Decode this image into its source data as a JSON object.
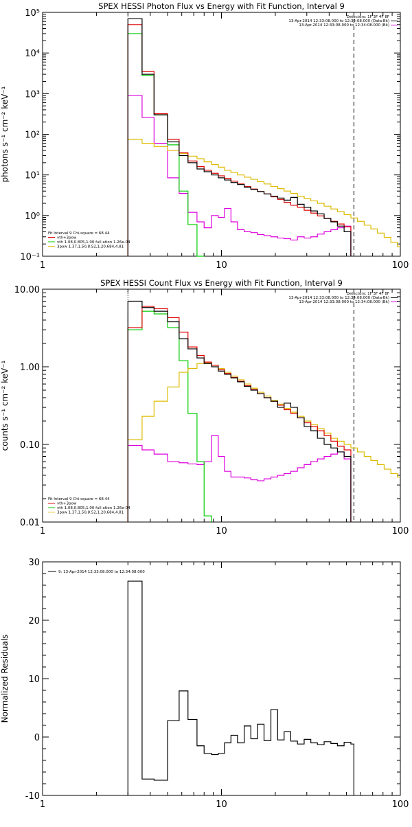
{
  "colors": {
    "observed": "#000000",
    "total_fit": "#dd0000",
    "vth": "#00cc00",
    "powerlaw": "#ddbb00",
    "background": "#dd00dd"
  },
  "chart_data": [
    {
      "type": "line",
      "title": "SPEX HESSI Photon Flux vs Energy with Fit Function, Interval 9",
      "ylabel": "photons s⁻¹ cm⁻² keV⁻¹",
      "xscale": "log",
      "yscale": "log",
      "xlim": [
        1,
        100
      ],
      "ylim": [
        0.1,
        100000
      ],
      "xticks": [
        1,
        10,
        100
      ],
      "xtick_labels": [
        "1",
        "10",
        "100"
      ],
      "yticks": [
        0.1,
        1,
        10,
        100,
        1000,
        10000,
        100000
      ],
      "ytick_labels": [
        "10⁻¹",
        "10⁰",
        "10¹",
        "10²",
        "10³",
        "10⁴",
        "10⁵"
      ],
      "vlines": [
        {
          "x": 3.0,
          "style": "dotted"
        },
        {
          "x": 55.0,
          "style": "dashed"
        }
      ],
      "info_lines": [
        "Detectors: 1F 3F 4F 8F",
        "13-Apr-2014 12:33:08.000 to 12:34:08.000 (Data-Bk)",
        "13-Apr-2014 12:33:08.000 to 12:34:08.000 (Bk)"
      ],
      "legend": [
        "Fit Interval 9    Chi-square = 68.44",
        "vth+3pow",
        "vth 1.08,0.805,1.00  full ation 1.26e-04",
        "3pow 1.37,1.50,8.52,1.20,684,4.81"
      ],
      "edges": [
        3.0,
        3.6,
        4.2,
        5.0,
        5.8,
        6.5,
        7.3,
        8.0,
        8.8,
        9.6,
        10.4,
        11.3,
        12.3,
        13.4,
        14.6,
        15.9,
        17.3,
        18.9,
        20.6,
        22.4,
        24.4,
        26.6,
        29.0,
        31.6,
        34.4,
        37.5,
        40.9,
        44.5,
        48.5,
        52.9,
        57.6,
        62.8,
        68.4,
        74.5,
        81.2,
        88.5,
        96.4,
        100
      ],
      "series": [
        {
          "key": "observed",
          "end": 55.0,
          "values": [
            70000,
            3000,
            300,
            65,
            30,
            20,
            14,
            12,
            10,
            8.5,
            7.5,
            6.5,
            5.8,
            5.0,
            4.4,
            3.9,
            3.4,
            3.0,
            2.7,
            2.4,
            2.8,
            1.9,
            1.6,
            1.3,
            1.1,
            0.85,
            0.7,
            0.55,
            0.4
          ]
        },
        {
          "key": "total_fit",
          "end": 55.0,
          "values": [
            50000,
            3500,
            320,
            75,
            35,
            22,
            16,
            13,
            11,
            9.5,
            8.2,
            7.0,
            6.0,
            5.2,
            4.5,
            3.9,
            3.4,
            2.9,
            2.5,
            2.1,
            1.8,
            1.6,
            1.35,
            1.15,
            0.98,
            0.85,
            0.72,
            0.62,
            0.53
          ]
        },
        {
          "key": "vth",
          "end": 9.6,
          "values": [
            30000,
            2800,
            300,
            55,
            4,
            0.6,
            0.1
          ]
        },
        {
          "key": "powerlaw",
          "end": 100,
          "values": [
            75,
            60,
            50,
            40,
            34,
            29,
            25,
            21,
            18,
            15.5,
            13,
            11.5,
            10,
            8.8,
            7.8,
            6.8,
            6.0,
            5.2,
            4.6,
            4.0,
            3.5,
            3.0,
            2.6,
            2.3,
            2.0,
            1.7,
            1.45,
            1.25,
            1.05,
            0.87,
            0.72,
            0.58,
            0.47,
            0.37,
            0.29,
            0.22,
            0.17
          ]
        },
        {
          "key": "background",
          "end": 55.0,
          "values": [
            900,
            260,
            60,
            8.5,
            3.5,
            1.2,
            0.7,
            0.5,
            1.0,
            0.9,
            1.5,
            0.7,
            0.45,
            0.4,
            0.38,
            0.34,
            0.32,
            0.3,
            0.28,
            0.27,
            0.25,
            0.3,
            0.28,
            0.3,
            0.35,
            0.4,
            0.45,
            0.5,
            0.55
          ]
        }
      ]
    },
    {
      "type": "line",
      "title": "SPEX HESSI Count Flux vs Energy with Fit Function, Interval 9",
      "ylabel": "counts s⁻¹ cm⁻² keV⁻¹",
      "xscale": "log",
      "yscale": "log",
      "xlim": [
        1,
        100
      ],
      "ylim": [
        0.01,
        10
      ],
      "xticks": [
        1,
        10,
        100
      ],
      "xtick_labels": [
        "1",
        "10",
        "100"
      ],
      "yticks": [
        0.01,
        0.1,
        1,
        10
      ],
      "ytick_labels": [
        "0.01",
        "0.10",
        "1.00",
        "10.00"
      ],
      "vlines": [
        {
          "x": 3.0,
          "style": "dotted"
        },
        {
          "x": 55.0,
          "style": "dashed"
        }
      ],
      "info_lines": [
        "Detectors: 1F 3F 4F 8F",
        "13-Apr-2014 12:33:08.000 to 12:34:08.000 (Data-Bk)",
        "13-Apr-2014 12:33:08.000 to 12:34:08.000 (Bk)"
      ],
      "legend": [
        "Fit Interval 9    Chi-square = 68.44",
        "vth+3pow",
        "vth 1.08,0.805,1.00  full ation 1.26e-04",
        "3pow 1.37,1.50,8.52,1.20,684,4.81"
      ],
      "edges": [
        3.0,
        3.6,
        4.2,
        5.0,
        5.8,
        6.5,
        7.3,
        8.0,
        8.8,
        9.6,
        10.4,
        11.3,
        12.3,
        13.4,
        14.6,
        15.9,
        17.3,
        18.9,
        20.6,
        22.4,
        24.4,
        26.6,
        29.0,
        31.6,
        34.4,
        37.5,
        40.9,
        44.5,
        48.5,
        52.9,
        57.6,
        62.8,
        68.4,
        74.5,
        81.2,
        88.5,
        96.4,
        100
      ],
      "series": [
        {
          "key": "observed",
          "end": 55.0,
          "values": [
            7.0,
            5.8,
            5.2,
            3.8,
            2.3,
            1.7,
            1.3,
            1.1,
            1.0,
            0.88,
            0.8,
            0.72,
            0.64,
            0.56,
            0.5,
            0.45,
            0.4,
            0.36,
            0.3,
            0.34,
            0.3,
            0.22,
            0.17,
            0.15,
            0.12,
            0.1,
            0.09,
            0.08,
            0.07
          ]
        },
        {
          "key": "total_fit",
          "end": 55.0,
          "values": [
            3.2,
            6.0,
            5.6,
            4.3,
            2.8,
            1.8,
            1.4,
            1.15,
            1.05,
            0.92,
            0.82,
            0.73,
            0.65,
            0.57,
            0.51,
            0.45,
            0.4,
            0.36,
            0.32,
            0.28,
            0.25,
            0.22,
            0.19,
            0.17,
            0.15,
            0.13,
            0.11,
            0.095,
            0.085
          ]
        },
        {
          "key": "vth",
          "end": 9.6,
          "values": [
            3.0,
            5.2,
            4.8,
            3.2,
            1.2,
            0.25,
            0.06,
            0.012
          ]
        },
        {
          "key": "powerlaw",
          "end": 100,
          "values": [
            0.115,
            0.23,
            0.36,
            0.55,
            0.85,
            0.95,
            1.1,
            1.12,
            1.05,
            0.95,
            0.85,
            0.76,
            0.68,
            0.6,
            0.53,
            0.47,
            0.42,
            0.37,
            0.33,
            0.29,
            0.26,
            0.23,
            0.2,
            0.18,
            0.16,
            0.14,
            0.12,
            0.11,
            0.1,
            0.09,
            0.08,
            0.07,
            0.062,
            0.055,
            0.048,
            0.042,
            0.038
          ]
        },
        {
          "key": "background",
          "end": 55.0,
          "values": [
            0.097,
            0.085,
            0.075,
            0.06,
            0.058,
            0.056,
            0.055,
            0.06,
            0.13,
            0.07,
            0.045,
            0.038,
            0.038,
            0.037,
            0.035,
            0.034,
            0.036,
            0.038,
            0.04,
            0.042,
            0.045,
            0.05,
            0.055,
            0.06,
            0.065,
            0.07,
            0.075,
            0.08,
            0.065
          ]
        }
      ]
    },
    {
      "type": "line",
      "title": "",
      "ylabel": "Normalized Residuals",
      "xscale": "log",
      "yscale": "linear",
      "xlim": [
        1,
        100
      ],
      "ylim": [
        -10,
        30
      ],
      "xticks": [
        1,
        10,
        100
      ],
      "xtick_labels": [
        "1",
        "10",
        "100"
      ],
      "yticks": [
        -10,
        0,
        10,
        20,
        30
      ],
      "ytick_labels": [
        "-10",
        "0",
        "10",
        "20",
        "30"
      ],
      "vlines": [],
      "info_lines": [],
      "legend": [
        "9: 13-Apr-2014 12:33:08.000 to 12:34:08.000"
      ],
      "edges": [
        3.0,
        3.6,
        4.2,
        5.0,
        5.8,
        6.5,
        7.3,
        8.0,
        8.8,
        9.6,
        10.4,
        11.3,
        12.3,
        13.4,
        14.6,
        15.9,
        17.3,
        18.9,
        20.6,
        22.4,
        24.4,
        26.6,
        29.0,
        31.6,
        34.4,
        37.5,
        40.9,
        44.5,
        48.5,
        52.9,
        57.6
      ],
      "series": [
        {
          "key": "observed",
          "end": 55.0,
          "values": [
            26.7,
            -7.2,
            -7.4,
            2.8,
            7.9,
            3.0,
            -1.5,
            -2.8,
            -3.0,
            -2.8,
            -1.0,
            0.3,
            -1.0,
            1.9,
            -0.3,
            2.2,
            -0.6,
            4.7,
            -0.5,
            0.9,
            -0.7,
            -1.2,
            -0.4,
            -1.0,
            -1.3,
            -0.8,
            -1.1,
            -1.5,
            -0.9,
            -1.2
          ]
        }
      ]
    }
  ]
}
